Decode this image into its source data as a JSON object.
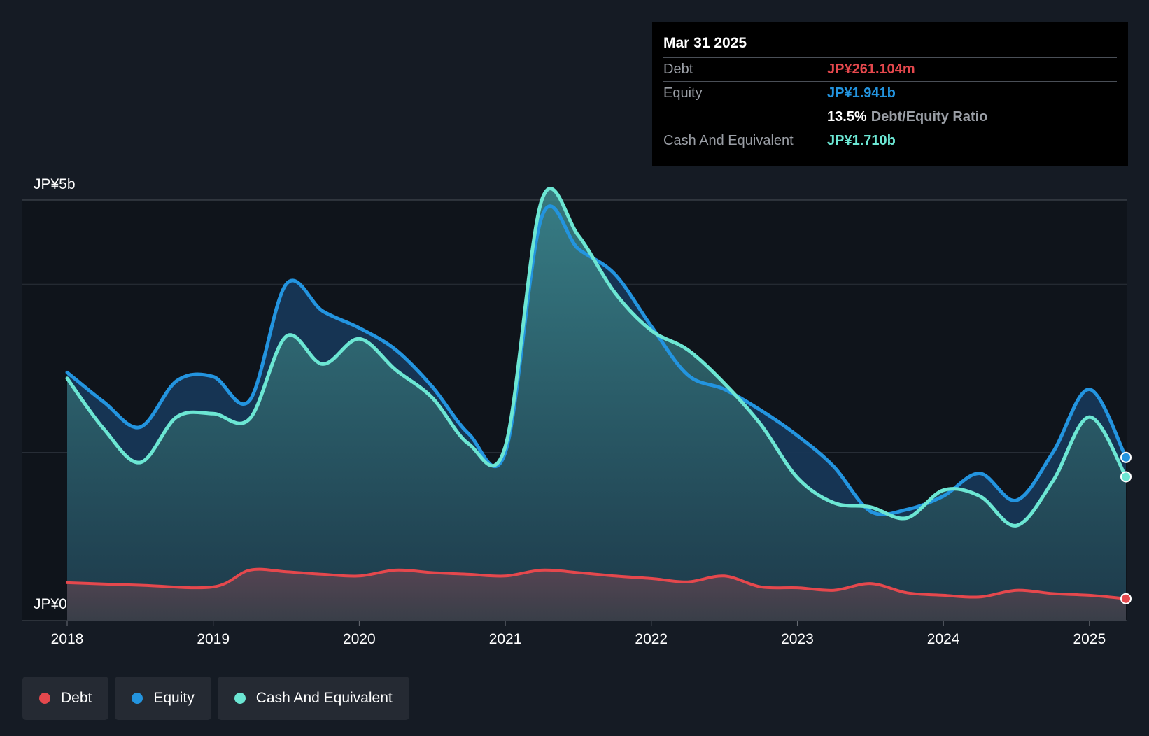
{
  "tooltip": {
    "date": "Mar 31 2025",
    "debt_label": "Debt",
    "debt_value": "JP¥261.104m",
    "equity_label": "Equity",
    "equity_value": "JP¥1.941b",
    "ratio_value": "13.5%",
    "ratio_label": "Debt/Equity Ratio",
    "cash_label": "Cash And Equivalent",
    "cash_value": "JP¥1.710b"
  },
  "legend": [
    {
      "label": "Debt",
      "color": "#e5484d"
    },
    {
      "label": "Equity",
      "color": "#2394df"
    },
    {
      "label": "Cash And Equivalent",
      "color": "#6ce6d3"
    }
  ],
  "colors": {
    "background": "#151b24",
    "debt": "#e5484d",
    "equity": "#2394df",
    "cash": "#6ce6d3"
  },
  "chart_data": {
    "type": "area",
    "currency_unit": "JP¥ billions",
    "y_tick_labels": [
      "JP¥5b",
      "JP¥0"
    ],
    "ylim": [
      0,
      5
    ],
    "x_tick_labels": [
      "2018",
      "2019",
      "2020",
      "2021",
      "2022",
      "2023",
      "2024",
      "2025"
    ],
    "xlim": [
      2018.0,
      2025.25
    ],
    "grid": true,
    "legend_position": "bottom-left",
    "highlight_date": "Mar 31 2025",
    "series": [
      {
        "name": "Debt",
        "x": [
          2018.0,
          2018.5,
          2019.0,
          2019.25,
          2019.5,
          2019.75,
          2020.0,
          2020.25,
          2020.5,
          2020.75,
          2021.0,
          2021.25,
          2021.5,
          2021.75,
          2022.0,
          2022.25,
          2022.5,
          2022.75,
          2023.0,
          2023.25,
          2023.5,
          2023.75,
          2024.0,
          2024.25,
          2024.5,
          2024.75,
          2025.0,
          2025.25
        ],
        "values": [
          0.45,
          0.42,
          0.4,
          0.6,
          0.58,
          0.55,
          0.53,
          0.6,
          0.57,
          0.55,
          0.53,
          0.6,
          0.57,
          0.53,
          0.5,
          0.46,
          0.53,
          0.4,
          0.39,
          0.36,
          0.44,
          0.33,
          0.3,
          0.28,
          0.36,
          0.32,
          0.3,
          0.26
        ]
      },
      {
        "name": "Equity",
        "x": [
          2018.0,
          2018.25,
          2018.5,
          2018.75,
          2019.0,
          2019.25,
          2019.5,
          2019.75,
          2020.0,
          2020.25,
          2020.5,
          2020.75,
          2021.0,
          2021.25,
          2021.5,
          2021.75,
          2022.0,
          2022.25,
          2022.5,
          2022.75,
          2023.0,
          2023.25,
          2023.5,
          2023.75,
          2024.0,
          2024.25,
          2024.5,
          2024.75,
          2025.0,
          2025.25
        ],
        "values": [
          2.95,
          2.6,
          2.3,
          2.85,
          2.9,
          2.62,
          4.0,
          3.68,
          3.48,
          3.22,
          2.78,
          2.22,
          2.0,
          4.8,
          4.42,
          4.12,
          3.5,
          2.92,
          2.75,
          2.5,
          2.2,
          1.83,
          1.3,
          1.32,
          1.48,
          1.75,
          1.43,
          2.0,
          2.75,
          1.94
        ]
      },
      {
        "name": "Cash And Equivalent",
        "x": [
          2018.0,
          2018.25,
          2018.5,
          2018.75,
          2019.0,
          2019.25,
          2019.5,
          2019.75,
          2020.0,
          2020.25,
          2020.5,
          2020.75,
          2021.0,
          2021.25,
          2021.5,
          2021.75,
          2022.0,
          2022.25,
          2022.5,
          2022.75,
          2023.0,
          2023.25,
          2023.5,
          2023.75,
          2024.0,
          2024.25,
          2024.5,
          2024.75,
          2025.0,
          2025.25
        ],
        "values": [
          2.88,
          2.28,
          1.88,
          2.42,
          2.46,
          2.4,
          3.38,
          3.05,
          3.35,
          2.98,
          2.65,
          2.1,
          2.07,
          5.0,
          4.58,
          3.9,
          3.45,
          3.22,
          2.82,
          2.33,
          1.7,
          1.4,
          1.35,
          1.22,
          1.55,
          1.48,
          1.13,
          1.66,
          2.42,
          1.71
        ]
      }
    ]
  }
}
